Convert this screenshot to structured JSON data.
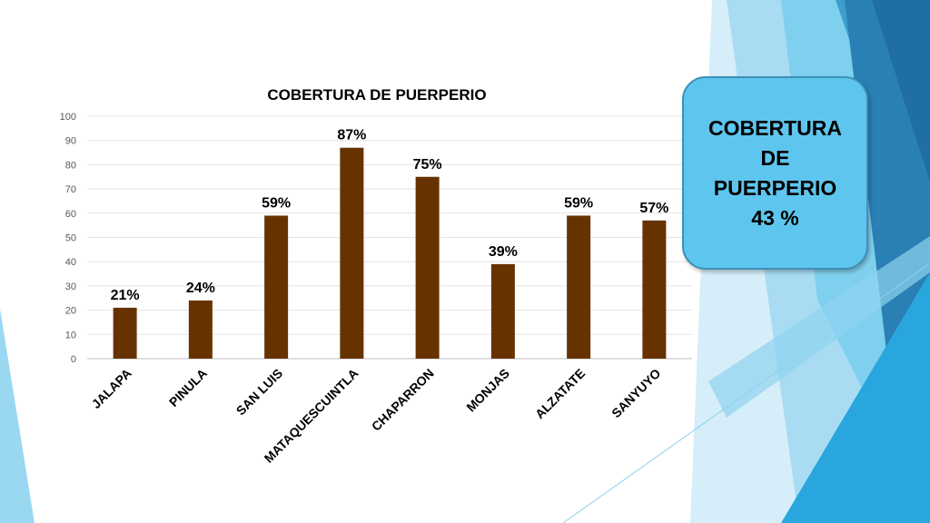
{
  "chart_data": {
    "type": "bar",
    "title": "COBERTURA DE PUERPERIO",
    "categories": [
      "JALAPA",
      "PINULA",
      "SAN LUIS",
      "MATAQUESCUINTLA",
      "CHAPARRON",
      "MONJAS",
      "ALZATATE",
      "SANYUYO"
    ],
    "values": [
      21,
      24,
      59,
      87,
      75,
      39,
      59,
      57
    ],
    "data_labels": [
      "21%",
      "24%",
      "59%",
      "87%",
      "75%",
      "39%",
      "59%",
      "57%"
    ],
    "yticks": [
      "0",
      "10",
      "20",
      "30",
      "40",
      "50",
      "60",
      "70",
      "80",
      "90",
      "100"
    ],
    "ylim": [
      0,
      100
    ],
    "grid": true,
    "bar_color": "#663300"
  },
  "callout": {
    "line1": "COBERTURA",
    "line2": "DE",
    "line3": "PUERPERIO",
    "line4": "43 %"
  },
  "colors": {
    "callout_fill": "#5ec6ee",
    "accent_light": "#7fd0ee",
    "accent_dark": "#1e6fa3"
  }
}
